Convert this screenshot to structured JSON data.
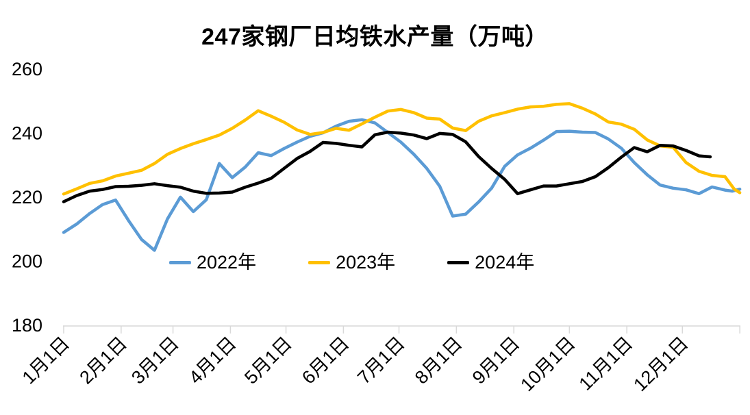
{
  "title": "247家钢厂日均铁水产量（万吨）",
  "legend": {
    "items": [
      {
        "label": "2022年"
      },
      {
        "label": "2023年"
      },
      {
        "label": "2024年"
      }
    ]
  },
  "chart_data": {
    "type": "line",
    "title": "247家钢厂日均铁水产量（万吨）",
    "unit": "万吨",
    "grid": false,
    "legend_position": "inside-lower-center",
    "x_axis": {
      "labels": [
        "1月1日",
        "2月1日",
        "3月1日",
        "4月1日",
        "5月1日",
        "6月1日",
        "7月1日",
        "8月1日",
        "9月1日",
        "10月1日",
        "11月1日",
        "12月1日"
      ],
      "label_days": [
        0,
        31,
        59,
        90,
        120,
        151,
        181,
        212,
        243,
        273,
        304,
        334
      ],
      "tick_days": [
        0,
        31,
        59,
        90,
        120,
        151,
        181,
        212,
        243,
        273,
        304,
        334,
        365
      ],
      "range_days": [
        0,
        365
      ]
    },
    "y_axis": {
      "ticks": [
        260,
        240,
        220,
        200,
        180
      ],
      "range": [
        180,
        260
      ]
    },
    "axis_color": "#D9D9D9",
    "series": [
      {
        "name": "2022年",
        "color": "#5B9BD5",
        "points": [
          [
            0,
            208.8
          ],
          [
            7,
            211.4
          ],
          [
            14,
            214.7
          ],
          [
            21,
            217.5
          ],
          [
            28,
            218.9
          ],
          [
            35,
            212.5
          ],
          [
            42,
            206.6
          ],
          [
            49,
            203.2
          ],
          [
            56,
            213.0
          ],
          [
            63,
            219.8
          ],
          [
            70,
            215.3
          ],
          [
            77,
            219.0
          ],
          [
            84,
            230.3
          ],
          [
            91,
            225.9
          ],
          [
            98,
            229.2
          ],
          [
            105,
            233.7
          ],
          [
            112,
            232.8
          ],
          [
            119,
            235.0
          ],
          [
            126,
            237.0
          ],
          [
            133,
            238.8
          ],
          [
            140,
            239.9
          ],
          [
            147,
            242.0
          ],
          [
            154,
            243.5
          ],
          [
            161,
            244.0
          ],
          [
            168,
            243.0
          ],
          [
            175,
            240.0
          ],
          [
            182,
            237.0
          ],
          [
            189,
            233.2
          ],
          [
            196,
            228.8
          ],
          [
            203,
            223.2
          ],
          [
            210,
            213.9
          ],
          [
            217,
            214.5
          ],
          [
            224,
            218.3
          ],
          [
            231,
            222.6
          ],
          [
            238,
            229.4
          ],
          [
            245,
            233.0
          ],
          [
            252,
            235.1
          ],
          [
            259,
            237.6
          ],
          [
            266,
            240.3
          ],
          [
            273,
            240.4
          ],
          [
            280,
            240.1
          ],
          [
            287,
            240.0
          ],
          [
            294,
            238.0
          ],
          [
            301,
            235.1
          ],
          [
            308,
            230.6
          ],
          [
            315,
            226.8
          ],
          [
            322,
            223.6
          ],
          [
            329,
            222.6
          ],
          [
            336,
            222.1
          ],
          [
            343,
            220.9
          ],
          [
            350,
            223.0
          ],
          [
            357,
            222.0
          ],
          [
            361,
            221.7
          ],
          [
            365,
            222.3
          ]
        ]
      },
      {
        "name": "2023年",
        "color": "#FFC000",
        "points": [
          [
            0,
            220.8
          ],
          [
            7,
            222.4
          ],
          [
            14,
            224.1
          ],
          [
            21,
            224.9
          ],
          [
            28,
            226.4
          ],
          [
            35,
            227.3
          ],
          [
            42,
            228.2
          ],
          [
            49,
            230.3
          ],
          [
            56,
            233.2
          ],
          [
            63,
            235.0
          ],
          [
            70,
            236.5
          ],
          [
            77,
            237.8
          ],
          [
            84,
            239.2
          ],
          [
            91,
            241.3
          ],
          [
            98,
            243.9
          ],
          [
            105,
            246.8
          ],
          [
            112,
            245.1
          ],
          [
            119,
            243.2
          ],
          [
            126,
            240.8
          ],
          [
            133,
            239.4
          ],
          [
            140,
            240.0
          ],
          [
            147,
            241.3
          ],
          [
            154,
            240.7
          ],
          [
            161,
            242.7
          ],
          [
            168,
            244.8
          ],
          [
            175,
            246.7
          ],
          [
            182,
            247.2
          ],
          [
            189,
            246.2
          ],
          [
            196,
            244.5
          ],
          [
            203,
            244.2
          ],
          [
            210,
            241.4
          ],
          [
            217,
            240.6
          ],
          [
            224,
            243.5
          ],
          [
            231,
            245.2
          ],
          [
            238,
            246.2
          ],
          [
            245,
            247.3
          ],
          [
            252,
            248.0
          ],
          [
            259,
            248.2
          ],
          [
            266,
            248.8
          ],
          [
            273,
            249.0
          ],
          [
            280,
            247.6
          ],
          [
            287,
            245.8
          ],
          [
            294,
            243.3
          ],
          [
            301,
            242.6
          ],
          [
            308,
            241.0
          ],
          [
            315,
            237.7
          ],
          [
            322,
            235.8
          ],
          [
            329,
            235.4
          ],
          [
            336,
            230.6
          ],
          [
            343,
            227.9
          ],
          [
            350,
            226.6
          ],
          [
            357,
            226.2
          ],
          [
            362,
            222.3
          ],
          [
            365,
            221.2
          ]
        ]
      },
      {
        "name": "2024年",
        "color": "#000000",
        "points": [
          [
            0,
            218.4
          ],
          [
            7,
            220.3
          ],
          [
            14,
            221.7
          ],
          [
            21,
            222.2
          ],
          [
            28,
            223.1
          ],
          [
            35,
            223.2
          ],
          [
            42,
            223.5
          ],
          [
            49,
            224.0
          ],
          [
            56,
            223.4
          ],
          [
            63,
            222.9
          ],
          [
            70,
            221.7
          ],
          [
            77,
            221.0
          ],
          [
            84,
            221.1
          ],
          [
            91,
            221.4
          ],
          [
            98,
            222.9
          ],
          [
            105,
            224.2
          ],
          [
            112,
            225.7
          ],
          [
            119,
            228.8
          ],
          [
            126,
            231.9
          ],
          [
            133,
            234.1
          ],
          [
            140,
            236.9
          ],
          [
            147,
            236.6
          ],
          [
            154,
            236.0
          ],
          [
            161,
            235.5
          ],
          [
            168,
            239.3
          ],
          [
            175,
            240.1
          ],
          [
            182,
            239.8
          ],
          [
            189,
            239.2
          ],
          [
            196,
            238.1
          ],
          [
            203,
            239.7
          ],
          [
            210,
            239.4
          ],
          [
            217,
            237.1
          ],
          [
            224,
            232.5
          ],
          [
            231,
            228.8
          ],
          [
            238,
            225.4
          ],
          [
            245,
            220.9
          ],
          [
            252,
            222.1
          ],
          [
            259,
            223.3
          ],
          [
            266,
            223.3
          ],
          [
            273,
            224.0
          ],
          [
            280,
            224.7
          ],
          [
            287,
            226.2
          ],
          [
            294,
            229.0
          ],
          [
            301,
            232.3
          ],
          [
            308,
            235.3
          ],
          [
            315,
            234.0
          ],
          [
            322,
            236.0
          ],
          [
            329,
            235.8
          ],
          [
            336,
            234.4
          ],
          [
            343,
            232.7
          ],
          [
            349,
            232.4
          ]
        ]
      }
    ]
  }
}
